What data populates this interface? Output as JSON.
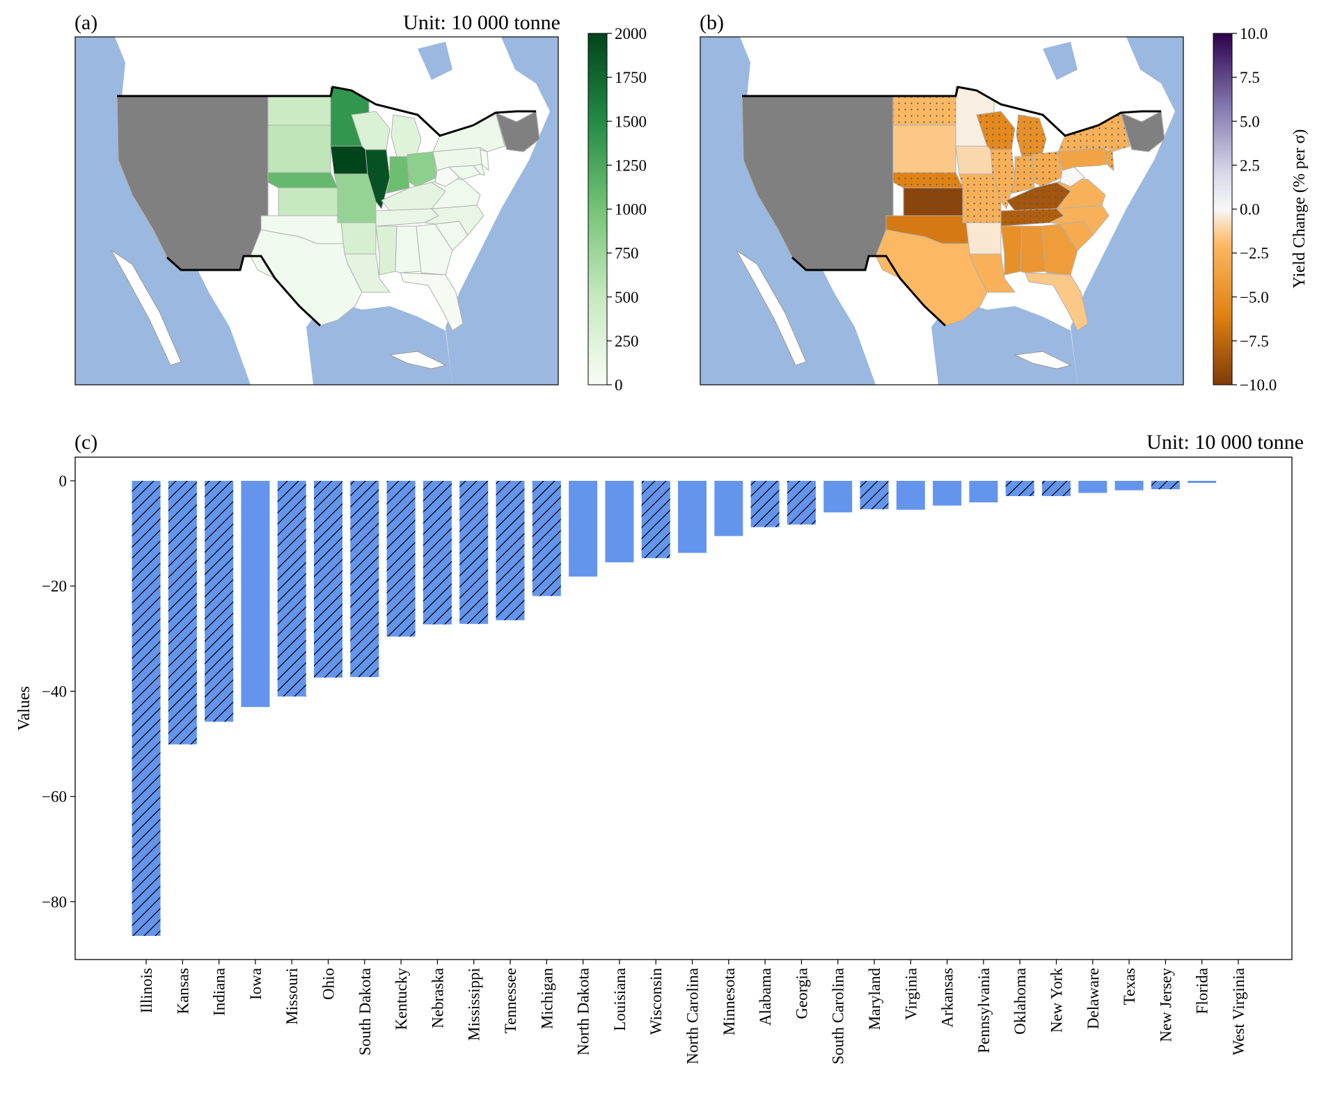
{
  "figure": {
    "panel_a": {
      "label": "(a)",
      "unit": "Unit: 10 000 tonne"
    },
    "panel_b": {
      "label": "(b)"
    },
    "panel_c": {
      "label": "(c)",
      "unit": "Unit: 10 000 tonne"
    }
  },
  "colors": {
    "bar": "#6495ED",
    "ocean": "#9bb8e0",
    "no_data": "#808080",
    "border": "#000000"
  },
  "chart_data": [
    {
      "type": "heatmap",
      "panel": "(a)",
      "kind": "choropleth map of US states",
      "unit": "Unit: 10 000 tonne",
      "colorbar": {
        "min": 0,
        "max": 2000,
        "ticks": [
          0,
          250,
          500,
          750,
          1000,
          1250,
          1500,
          1750,
          2000
        ],
        "colormap": "Greens"
      },
      "values": {
        "Iowa": 2000,
        "Illinois": 1900,
        "Minnesota": 1400,
        "Nebraska": 1100,
        "Indiana": 1050,
        "Ohio": 850,
        "Missouri": 800,
        "South Dakota": 550,
        "North Dakota": 450,
        "Kansas": 500,
        "Wisconsin": 300,
        "Michigan": 250,
        "Arkansas": 350,
        "Mississippi": 300,
        "Kentucky": 200,
        "Tennessee": 150,
        "Louisiana": 200,
        "Pennsylvania": 100,
        "New York": 100,
        "Virginia": 80,
        "North Carolina": 150,
        "South Carolina": 80,
        "Georgia": 60,
        "Alabama": 70,
        "Oklahoma": 60,
        "Texas": 60,
        "Florida": 20,
        "Maryland": 70,
        "Delaware": 50,
        "New Jersey": 30,
        "West Virginia": 10
      }
    },
    {
      "type": "heatmap",
      "panel": "(b)",
      "kind": "choropleth map of US states",
      "colorbar": {
        "min": -10.0,
        "max": 10.0,
        "ticks": [
          "10.0",
          "7.5",
          "5.0",
          "2.5",
          "0.0",
          "−2.5",
          "−5.0",
          "−7.5",
          "−10.0"
        ],
        "label": "Yield Change (% per σ)",
        "colormap": "PuOr"
      },
      "values": {
        "Kansas": -9.5,
        "Kentucky": -8.5,
        "Tennessee": -8.0,
        "Oklahoma": -6.5,
        "Nebraska": -6.0,
        "Wisconsin": -5.5,
        "Michigan": -5.0,
        "Mississippi": -5.0,
        "Alabama": -4.5,
        "Georgia": -4.0,
        "Pennsylvania": -3.5,
        "New Jersey": -3.5,
        "Indiana": -3.0,
        "Ohio": -3.0,
        "Illinois": -2.5,
        "Missouri": -2.5,
        "South Carolina": -3.0,
        "North Carolina": -2.5,
        "Virginia": -2.5,
        "New York": -2.5,
        "Louisiana": -2.5,
        "Texas": -2.0,
        "North Dakota": -2.0,
        "Florida": -1.5,
        "South Dakota": -1.5,
        "Iowa": -1.0,
        "Arkansas": -0.5,
        "Minnesota": -0.3,
        "West Virginia": 0.0
      }
    },
    {
      "type": "bar",
      "panel": "(c)",
      "title": "Unit: 10 000 tonne",
      "xlabel": "",
      "ylabel": "Values",
      "ylim": [
        -91,
        4.5
      ],
      "yticks": [
        0,
        -20,
        -40,
        -60,
        -80
      ],
      "ytick_labels": [
        "0",
        "−20",
        "−40",
        "−60",
        "−80"
      ],
      "categories": [
        "Illinois",
        "Kansas",
        "Indiana",
        "Iowa",
        "Missouri",
        "Ohio",
        "South Dakota",
        "Kentucky",
        "Nebraska",
        "Mississippi",
        "Tennessee",
        "Michigan",
        "North Dakota",
        "Louisiana",
        "Wisconsin",
        "North Carolina",
        "Minnesota",
        "Alabama",
        "Georgia",
        "South Carolina",
        "Maryland",
        "Virginia",
        "Arkansas",
        "Pennsylvania",
        "Oklahoma",
        "New York",
        "Delaware",
        "Texas",
        "New Jersey",
        "Florida",
        "West Virginia"
      ],
      "values": [
        -86.5,
        -50.1,
        -45.8,
        -43.0,
        -41.0,
        -37.4,
        -37.3,
        -29.6,
        -27.3,
        -27.2,
        -26.5,
        -21.9,
        -18.2,
        -15.5,
        -14.7,
        -13.7,
        -10.5,
        -8.8,
        -8.3,
        -6.0,
        -5.4,
        -5.5,
        -4.7,
        -4.1,
        -2.9,
        -2.9,
        -2.3,
        -1.8,
        -1.6,
        -0.4,
        0.0
      ],
      "hatched": [
        true,
        true,
        true,
        false,
        true,
        true,
        true,
        true,
        true,
        true,
        true,
        true,
        false,
        false,
        true,
        false,
        false,
        true,
        true,
        false,
        true,
        false,
        false,
        false,
        true,
        true,
        false,
        false,
        true,
        false,
        false
      ]
    }
  ]
}
